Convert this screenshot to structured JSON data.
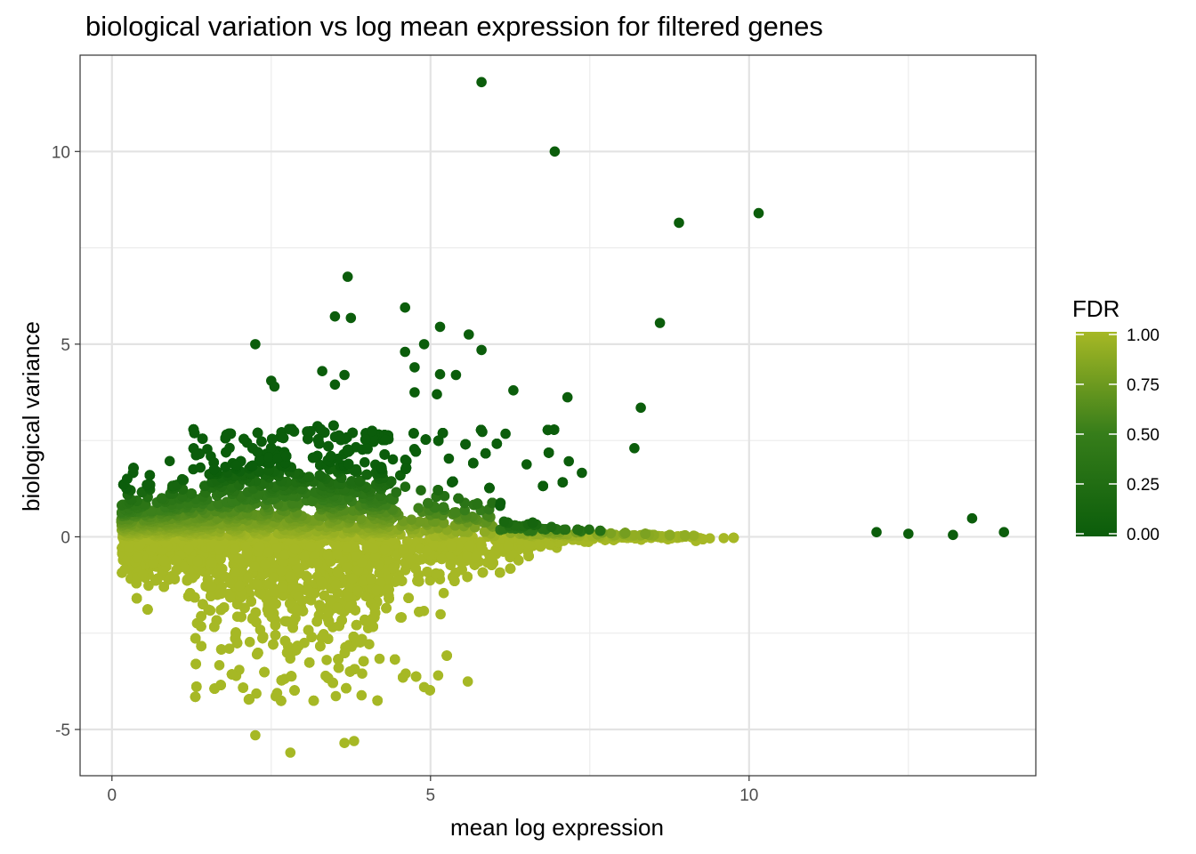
{
  "chart_data": {
    "type": "scatter",
    "title": "biological variation vs log mean expression for filtered genes",
    "xlabel": "mean log expression",
    "ylabel": "biological variance",
    "xlim": [
      -0.5,
      14.5
    ],
    "ylim": [
      -6.2,
      12.5
    ],
    "x_ticks": [
      0,
      5,
      10
    ],
    "y_ticks": [
      -5,
      0,
      5,
      10
    ],
    "x_tick_labels": [
      "0",
      "5",
      "10"
    ],
    "y_tick_labels": [
      "-5",
      "0",
      "5",
      "10"
    ],
    "grid": true,
    "legend": {
      "title": "FDR",
      "placement": "right",
      "ticks": [
        0.0,
        0.25,
        0.5,
        0.75,
        1.0
      ],
      "tick_labels": [
        "0.00",
        "0.25",
        "0.50",
        "0.75",
        "1.00"
      ],
      "low_color": "#0b5d0b",
      "high_color": "#a6b825"
    },
    "highlighted_points": [
      {
        "x": 5.8,
        "y": 11.8,
        "fdr": 0.0
      },
      {
        "x": 6.95,
        "y": 10.0,
        "fdr": 0.0
      },
      {
        "x": 8.9,
        "y": 8.15,
        "fdr": 0.0
      },
      {
        "x": 10.15,
        "y": 8.4,
        "fdr": 0.0
      },
      {
        "x": 3.7,
        "y": 6.75,
        "fdr": 0.0
      },
      {
        "x": 8.6,
        "y": 5.55,
        "fdr": 0.0
      },
      {
        "x": 4.6,
        "y": 5.95,
        "fdr": 0.0
      },
      {
        "x": 3.5,
        "y": 5.72,
        "fdr": 0.0
      },
      {
        "x": 3.75,
        "y": 5.68,
        "fdr": 0.0
      },
      {
        "x": 5.15,
        "y": 5.45,
        "fdr": 0.0
      },
      {
        "x": 5.6,
        "y": 5.25,
        "fdr": 0.0
      },
      {
        "x": 2.25,
        "y": 5.0,
        "fdr": 0.0
      },
      {
        "x": 4.9,
        "y": 5.0,
        "fdr": 0.0
      },
      {
        "x": 5.8,
        "y": 4.85,
        "fdr": 0.0
      },
      {
        "x": 4.6,
        "y": 4.8,
        "fdr": 0.0
      },
      {
        "x": 4.75,
        "y": 4.4,
        "fdr": 0.0
      },
      {
        "x": 3.3,
        "y": 4.3,
        "fdr": 0.0
      },
      {
        "x": 5.15,
        "y": 4.22,
        "fdr": 0.0
      },
      {
        "x": 5.4,
        "y": 4.2,
        "fdr": 0.0
      },
      {
        "x": 3.65,
        "y": 4.2,
        "fdr": 0.0
      },
      {
        "x": 2.5,
        "y": 4.05,
        "fdr": 0.0
      },
      {
        "x": 2.55,
        "y": 3.9,
        "fdr": 0.0
      },
      {
        "x": 3.5,
        "y": 3.95,
        "fdr": 0.0
      },
      {
        "x": 4.75,
        "y": 3.75,
        "fdr": 0.0
      },
      {
        "x": 5.1,
        "y": 3.7,
        "fdr": 0.0
      },
      {
        "x": 6.3,
        "y": 3.8,
        "fdr": 0.0
      },
      {
        "x": 7.15,
        "y": 3.62,
        "fdr": 0.0
      },
      {
        "x": 8.3,
        "y": 3.35,
        "fdr": 0.0
      },
      {
        "x": 8.2,
        "y": 2.3,
        "fdr": 0.0
      },
      {
        "x": 12.0,
        "y": 0.12,
        "fdr": 0.0
      },
      {
        "x": 12.5,
        "y": 0.08,
        "fdr": 0.0
      },
      {
        "x": 13.2,
        "y": 0.05,
        "fdr": 0.0
      },
      {
        "x": 13.5,
        "y": 0.48,
        "fdr": 0.0
      },
      {
        "x": 14.0,
        "y": 0.12,
        "fdr": 0.0
      },
      {
        "x": 0.2,
        "y": -0.85,
        "fdr": 1.0
      },
      {
        "x": 2.8,
        "y": -5.6,
        "fdr": 1.0
      },
      {
        "x": 2.25,
        "y": -5.15,
        "fdr": 1.0
      },
      {
        "x": 3.65,
        "y": -5.35,
        "fdr": 1.0
      },
      {
        "x": 3.8,
        "y": -5.3,
        "fdr": 1.0
      },
      {
        "x": 4.9,
        "y": -3.9,
        "fdr": 1.0
      }
    ],
    "point_cloud": {
      "description_fdr": "background genes; FDR rises from ~0 for high positive variance to ~1 for near-zero/negative variance",
      "n_points": 9000
    }
  }
}
